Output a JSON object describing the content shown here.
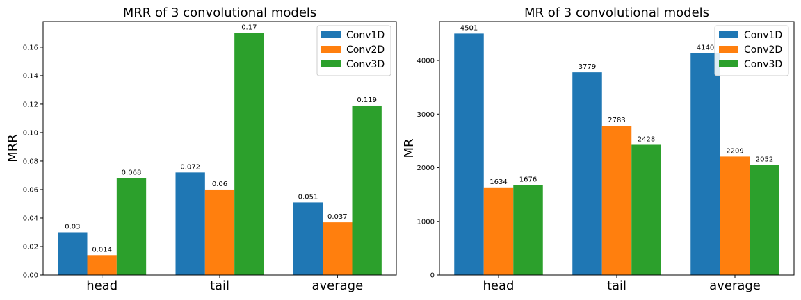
{
  "chart_data": [
    {
      "type": "bar",
      "title": "MRR of 3 convolutional models",
      "xlabel": "",
      "ylabel": "MRR",
      "categories": [
        "head",
        "tail",
        "average"
      ],
      "ylim": [
        0,
        0.178
      ],
      "yticks": [
        "0.00",
        "0.02",
        "0.04",
        "0.06",
        "0.08",
        "0.10",
        "0.12",
        "0.14",
        "0.16"
      ],
      "legend_position": "top-right",
      "grid": false,
      "series": [
        {
          "name": "Conv1D",
          "color": "#1f77b4",
          "values": [
            0.03,
            0.072,
            0.051
          ],
          "labels": [
            "0.03",
            "0.072",
            "0.051"
          ]
        },
        {
          "name": "Conv2D",
          "color": "#ff7f0e",
          "values": [
            0.014,
            0.06,
            0.037
          ],
          "labels": [
            "0.014",
            "0.06",
            "0.037"
          ]
        },
        {
          "name": "Conv3D",
          "color": "#2ca02c",
          "values": [
            0.068,
            0.17,
            0.119
          ],
          "labels": [
            "0.068",
            "0.17",
            "0.119"
          ]
        }
      ]
    },
    {
      "type": "bar",
      "title": "MR of 3 convolutional models",
      "xlabel": "",
      "ylabel": "MR",
      "categories": [
        "head",
        "tail",
        "average"
      ],
      "ylim": [
        0,
        4726
      ],
      "yticks": [
        "0",
        "1000",
        "2000",
        "3000",
        "4000"
      ],
      "legend_position": "top-right",
      "grid": false,
      "series": [
        {
          "name": "Conv1D",
          "color": "#1f77b4",
          "values": [
            4501,
            3779,
            4140
          ],
          "labels": [
            "4501",
            "3779",
            "4140"
          ]
        },
        {
          "name": "Conv2D",
          "color": "#ff7f0e",
          "values": [
            1634,
            2783,
            2209
          ],
          "labels": [
            "1634",
            "2783",
            "2209"
          ]
        },
        {
          "name": "Conv3D",
          "color": "#2ca02c",
          "values": [
            1676,
            2428,
            2052
          ],
          "labels": [
            "1676",
            "2428",
            "2052"
          ]
        }
      ]
    }
  ]
}
